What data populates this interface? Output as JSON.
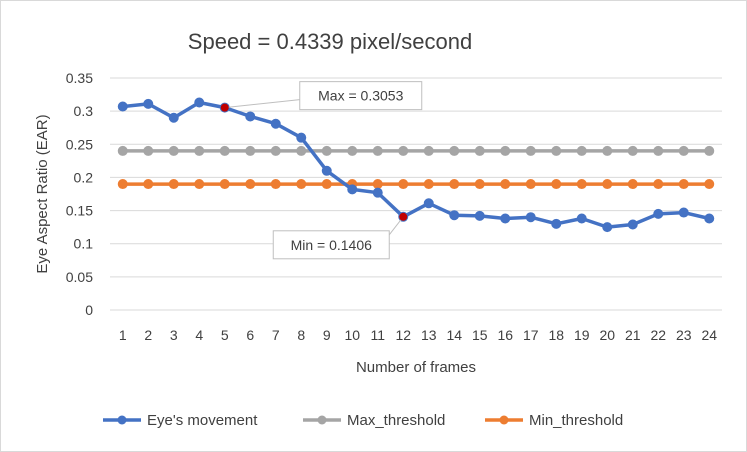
{
  "chart_data": {
    "type": "line",
    "title": "Speed = 0.4339 pixel/second",
    "xlabel": "Number of frames",
    "ylabel": "Eye Aspect Ratio (EAR)",
    "categories": [
      1,
      2,
      3,
      4,
      5,
      6,
      7,
      8,
      9,
      10,
      11,
      12,
      13,
      14,
      15,
      16,
      17,
      18,
      19,
      20,
      21,
      22,
      23,
      24
    ],
    "ylim": [
      0,
      0.35
    ],
    "yticks": [
      0,
      0.05,
      0.1,
      0.15,
      0.2,
      0.25,
      0.3,
      0.35
    ],
    "ytick_labels": [
      "0",
      "0.05",
      "0.1",
      "0.15",
      "0.2",
      "0.25",
      "0.3",
      "0.35"
    ],
    "gridlines": true,
    "legend_position": "bottom",
    "series": [
      {
        "name": "Eye's movement",
        "color": "#4472C4",
        "values": [
          0.307,
          0.311,
          0.29,
          0.313,
          0.3053,
          0.292,
          0.281,
          0.26,
          0.21,
          0.182,
          0.177,
          0.1406,
          0.161,
          0.143,
          0.142,
          0.138,
          0.14,
          0.13,
          0.138,
          0.125,
          0.129,
          0.145,
          0.147,
          0.138
        ]
      },
      {
        "name": "Max_threshold",
        "color": "#A5A5A5",
        "values": [
          0.24,
          0.24,
          0.24,
          0.24,
          0.24,
          0.24,
          0.24,
          0.24,
          0.24,
          0.24,
          0.24,
          0.24,
          0.24,
          0.24,
          0.24,
          0.24,
          0.24,
          0.24,
          0.24,
          0.24,
          0.24,
          0.24,
          0.24,
          0.24
        ]
      },
      {
        "name": "Min_threshold",
        "color": "#ED7D31",
        "values": [
          0.19,
          0.19,
          0.19,
          0.19,
          0.19,
          0.19,
          0.19,
          0.19,
          0.19,
          0.19,
          0.19,
          0.19,
          0.19,
          0.19,
          0.19,
          0.19,
          0.19,
          0.19,
          0.19,
          0.19,
          0.19,
          0.19,
          0.19,
          0.19
        ]
      }
    ],
    "annotations": [
      {
        "label": "Max = 0.3053",
        "category": 5,
        "value": 0.3053,
        "highlight_color": "#C00000"
      },
      {
        "label": "Min = 0.1406",
        "category": 12,
        "value": 0.1406,
        "highlight_color": "#C00000"
      }
    ]
  }
}
